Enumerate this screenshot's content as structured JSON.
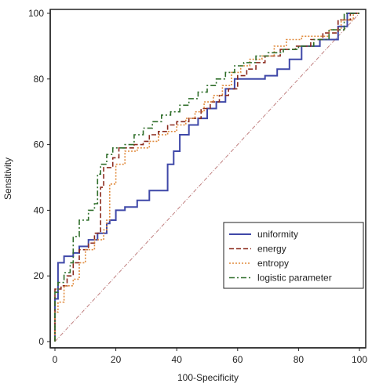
{
  "chart_data": {
    "type": "line",
    "xlabel": "100-Specificity",
    "ylabel": "Sensitivity",
    "xlim": [
      0,
      100
    ],
    "ylim": [
      0,
      100
    ],
    "xticks": [
      0,
      20,
      40,
      60,
      80,
      100
    ],
    "yticks": [
      0,
      20,
      40,
      60,
      80,
      100
    ],
    "legend_position": "bottom-right",
    "reference_line": {
      "from": [
        0,
        0
      ],
      "to": [
        100,
        100
      ],
      "color": "#c08080",
      "style": "dash-dot"
    },
    "series": [
      {
        "name": "uniformity",
        "color": "#3f48a8",
        "style": "solid",
        "points": [
          [
            0,
            0
          ],
          [
            0,
            13
          ],
          [
            1,
            13
          ],
          [
            1,
            24
          ],
          [
            3,
            24
          ],
          [
            3,
            26
          ],
          [
            6,
            26
          ],
          [
            6,
            27
          ],
          [
            8,
            27
          ],
          [
            8,
            29
          ],
          [
            11,
            29
          ],
          [
            11,
            31
          ],
          [
            14,
            31
          ],
          [
            14,
            33
          ],
          [
            17,
            33
          ],
          [
            17,
            36
          ],
          [
            18,
            36
          ],
          [
            18,
            37
          ],
          [
            20,
            37
          ],
          [
            20,
            40
          ],
          [
            23,
            40
          ],
          [
            23,
            41
          ],
          [
            27,
            41
          ],
          [
            27,
            43
          ],
          [
            31,
            43
          ],
          [
            31,
            46
          ],
          [
            37,
            46
          ],
          [
            37,
            54
          ],
          [
            39,
            54
          ],
          [
            39,
            58
          ],
          [
            41,
            58
          ],
          [
            41,
            63
          ],
          [
            44,
            63
          ],
          [
            44,
            66
          ],
          [
            47,
            66
          ],
          [
            47,
            68
          ],
          [
            50,
            68
          ],
          [
            50,
            71
          ],
          [
            53,
            71
          ],
          [
            53,
            73
          ],
          [
            56,
            73
          ],
          [
            56,
            77
          ],
          [
            59,
            77
          ],
          [
            59,
            80
          ],
          [
            65,
            80
          ],
          [
            65,
            80
          ],
          [
            69,
            80
          ],
          [
            69,
            81
          ],
          [
            73,
            81
          ],
          [
            73,
            83
          ],
          [
            77,
            83
          ],
          [
            77,
            86
          ],
          [
            81,
            86
          ],
          [
            81,
            90
          ],
          [
            87,
            90
          ],
          [
            87,
            92
          ],
          [
            93,
            92
          ],
          [
            93,
            96
          ],
          [
            96,
            96
          ],
          [
            96,
            100
          ],
          [
            100,
            100
          ]
        ]
      },
      {
        "name": "energy",
        "color": "#8b2a1d",
        "style": "dashed",
        "points": [
          [
            0,
            0
          ],
          [
            0,
            16
          ],
          [
            2,
            16
          ],
          [
            2,
            17
          ],
          [
            4,
            17
          ],
          [
            4,
            20
          ],
          [
            6,
            20
          ],
          [
            6,
            24
          ],
          [
            8,
            24
          ],
          [
            8,
            28
          ],
          [
            11,
            28
          ],
          [
            11,
            30
          ],
          [
            13,
            30
          ],
          [
            13,
            33
          ],
          [
            15,
            33
          ],
          [
            15,
            47
          ],
          [
            16,
            47
          ],
          [
            16,
            53
          ],
          [
            19,
            53
          ],
          [
            19,
            56
          ],
          [
            21,
            56
          ],
          [
            21,
            59
          ],
          [
            26,
            59
          ],
          [
            26,
            60
          ],
          [
            29,
            60
          ],
          [
            29,
            61
          ],
          [
            31,
            61
          ],
          [
            31,
            63
          ],
          [
            34,
            63
          ],
          [
            34,
            64
          ],
          [
            37,
            64
          ],
          [
            37,
            66
          ],
          [
            40,
            66
          ],
          [
            40,
            67
          ],
          [
            44,
            67
          ],
          [
            44,
            68
          ],
          [
            48,
            68
          ],
          [
            48,
            71
          ],
          [
            51,
            71
          ],
          [
            51,
            73
          ],
          [
            54,
            73
          ],
          [
            54,
            75
          ],
          [
            57,
            75
          ],
          [
            57,
            77
          ],
          [
            60,
            77
          ],
          [
            60,
            81
          ],
          [
            63,
            81
          ],
          [
            63,
            83
          ],
          [
            66,
            83
          ],
          [
            66,
            85
          ],
          [
            69,
            85
          ],
          [
            69,
            87
          ],
          [
            74,
            87
          ],
          [
            74,
            89
          ],
          [
            79,
            89
          ],
          [
            79,
            90
          ],
          [
            84,
            90
          ],
          [
            84,
            92
          ],
          [
            88,
            92
          ],
          [
            88,
            94
          ],
          [
            93,
            94
          ],
          [
            93,
            98
          ],
          [
            97,
            98
          ],
          [
            97,
            100
          ],
          [
            100,
            100
          ]
        ]
      },
      {
        "name": "entropy",
        "color": "#e08a3c",
        "style": "dotted",
        "points": [
          [
            0,
            0
          ],
          [
            0,
            9
          ],
          [
            1,
            9
          ],
          [
            1,
            12
          ],
          [
            3,
            12
          ],
          [
            3,
            17
          ],
          [
            6,
            17
          ],
          [
            6,
            19
          ],
          [
            8,
            19
          ],
          [
            8,
            24
          ],
          [
            10,
            24
          ],
          [
            10,
            28
          ],
          [
            13,
            28
          ],
          [
            13,
            31
          ],
          [
            16,
            31
          ],
          [
            16,
            34
          ],
          [
            17,
            34
          ],
          [
            17,
            37
          ],
          [
            18,
            37
          ],
          [
            18,
            48
          ],
          [
            20,
            48
          ],
          [
            20,
            54
          ],
          [
            23,
            54
          ],
          [
            23,
            58
          ],
          [
            27,
            58
          ],
          [
            27,
            59
          ],
          [
            31,
            59
          ],
          [
            31,
            61
          ],
          [
            34,
            61
          ],
          [
            34,
            63
          ],
          [
            37,
            63
          ],
          [
            37,
            64
          ],
          [
            40,
            64
          ],
          [
            40,
            66
          ],
          [
            43,
            66
          ],
          [
            43,
            68
          ],
          [
            46,
            68
          ],
          [
            46,
            70
          ],
          [
            49,
            70
          ],
          [
            49,
            73
          ],
          [
            52,
            73
          ],
          [
            52,
            75
          ],
          [
            55,
            75
          ],
          [
            55,
            78
          ],
          [
            58,
            78
          ],
          [
            58,
            82
          ],
          [
            61,
            82
          ],
          [
            61,
            84
          ],
          [
            64,
            84
          ],
          [
            64,
            86
          ],
          [
            68,
            86
          ],
          [
            68,
            87
          ],
          [
            72,
            87
          ],
          [
            72,
            90
          ],
          [
            76,
            90
          ],
          [
            76,
            92
          ],
          [
            81,
            92
          ],
          [
            81,
            93
          ],
          [
            90,
            93
          ],
          [
            90,
            95
          ],
          [
            94,
            95
          ],
          [
            94,
            98
          ],
          [
            98,
            98
          ],
          [
            98,
            100
          ],
          [
            100,
            100
          ]
        ]
      },
      {
        "name": "logistic  parameter",
        "color": "#2f6e2a",
        "style": "dash-dot",
        "points": [
          [
            0,
            0
          ],
          [
            0,
            15
          ],
          [
            1,
            15
          ],
          [
            1,
            18
          ],
          [
            3,
            18
          ],
          [
            3,
            21
          ],
          [
            5,
            21
          ],
          [
            5,
            24
          ],
          [
            6,
            24
          ],
          [
            6,
            32
          ],
          [
            8,
            32
          ],
          [
            8,
            37
          ],
          [
            11,
            37
          ],
          [
            11,
            40
          ],
          [
            13,
            40
          ],
          [
            13,
            42
          ],
          [
            14,
            42
          ],
          [
            14,
            51
          ],
          [
            15,
            51
          ],
          [
            15,
            54
          ],
          [
            17,
            54
          ],
          [
            17,
            57
          ],
          [
            19,
            57
          ],
          [
            19,
            59
          ],
          [
            23,
            59
          ],
          [
            23,
            60
          ],
          [
            26,
            60
          ],
          [
            26,
            63
          ],
          [
            29,
            63
          ],
          [
            29,
            65
          ],
          [
            32,
            65
          ],
          [
            32,
            67
          ],
          [
            35,
            67
          ],
          [
            35,
            69
          ],
          [
            38,
            69
          ],
          [
            38,
            70
          ],
          [
            41,
            70
          ],
          [
            41,
            72
          ],
          [
            44,
            72
          ],
          [
            44,
            74
          ],
          [
            47,
            74
          ],
          [
            47,
            76
          ],
          [
            50,
            76
          ],
          [
            50,
            78
          ],
          [
            53,
            78
          ],
          [
            53,
            80
          ],
          [
            56,
            80
          ],
          [
            56,
            82
          ],
          [
            59,
            82
          ],
          [
            59,
            84
          ],
          [
            62,
            84
          ],
          [
            62,
            85
          ],
          [
            66,
            85
          ],
          [
            66,
            87
          ],
          [
            70,
            87
          ],
          [
            70,
            88
          ],
          [
            75,
            88
          ],
          [
            75,
            89
          ],
          [
            80,
            89
          ],
          [
            80,
            90
          ],
          [
            85,
            90
          ],
          [
            85,
            92
          ],
          [
            90,
            92
          ],
          [
            90,
            95
          ],
          [
            95,
            95
          ],
          [
            95,
            100
          ],
          [
            100,
            100
          ]
        ]
      }
    ]
  }
}
